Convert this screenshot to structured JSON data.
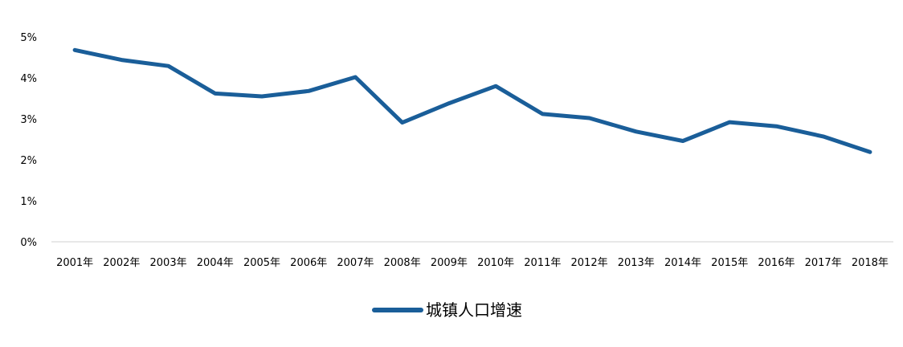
{
  "chart_data": {
    "type": "line",
    "categories": [
      "2001年",
      "2002年",
      "2003年",
      "2004年",
      "2005年",
      "2006年",
      "2007年",
      "2008年",
      "2009年",
      "2010年",
      "2011年",
      "2012年",
      "2013年",
      "2014年",
      "2015年",
      "2016年",
      "2017年",
      "2018年"
    ],
    "series": [
      {
        "name": "城镇人口增速",
        "color": "#1a5e99",
        "values": [
          4.68,
          4.44,
          4.29,
          3.62,
          3.55,
          3.68,
          4.02,
          2.91,
          3.38,
          3.8,
          3.12,
          3.02,
          2.69,
          2.46,
          2.92,
          2.82,
          2.57,
          2.19
        ]
      }
    ],
    "y_ticks": [
      "0%",
      "1%",
      "2%",
      "3%",
      "4%",
      "5%"
    ],
    "ylim": [
      0,
      5
    ],
    "grid": false,
    "legend_position": "bottom",
    "axis_color": "#d9d9d9"
  }
}
